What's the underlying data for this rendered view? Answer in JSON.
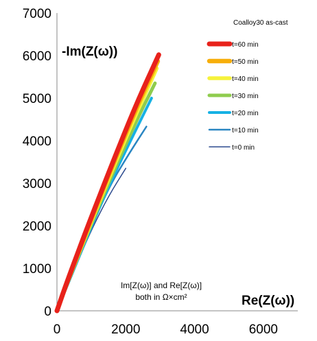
{
  "chart_data": {
    "type": "line",
    "title": "Coalloy30 as-cast",
    "xlabel": "Re(Z(ω))",
    "ylabel": "-Im(Z(ω))",
    "xlim": [
      0,
      7000
    ],
    "ylim": [
      0,
      7000
    ],
    "x_ticks": [
      "0",
      "2000",
      "4000",
      "6000"
    ],
    "y_ticks": [
      "0",
      "1000",
      "2000",
      "3000",
      "4000",
      "5000",
      "6000",
      "7000"
    ],
    "grid": false,
    "legend_position": "top-right",
    "annotation": [
      "Im[Z(ω)] and Re[Z(ω)]",
      "both in Ω×cm²"
    ],
    "series": [
      {
        "name": "t=60 min",
        "color": "#e8221b",
        "width": 7,
        "x": [
          0,
          300,
          900,
          1600,
          2300,
          2960
        ],
        "y": [
          0,
          700,
          2000,
          3450,
          4850,
          6020
        ]
      },
      {
        "name": "t=50 min",
        "color": "#f7ae0a",
        "width": 6.5,
        "x": [
          0,
          300,
          900,
          1600,
          2300,
          2930
        ],
        "y": [
          0,
          680,
          1950,
          3380,
          4750,
          5870
        ]
      },
      {
        "name": "t=40 min",
        "color": "#f6f23a",
        "width": 5.5,
        "x": [
          0,
          300,
          900,
          1600,
          2300,
          2900
        ],
        "y": [
          0,
          660,
          1900,
          3300,
          4620,
          5700
        ]
      },
      {
        "name": "t=30 min",
        "color": "#8fcc4e",
        "width": 5,
        "x": [
          0,
          300,
          900,
          1600,
          2300,
          2850
        ],
        "y": [
          0,
          640,
          1850,
          3200,
          4450,
          5350
        ]
      },
      {
        "name": "t=20 min",
        "color": "#16b1e4",
        "width": 4,
        "x": [
          0,
          300,
          900,
          1600,
          2200,
          2750
        ],
        "y": [
          0,
          600,
          1800,
          3100,
          4100,
          5000
        ]
      },
      {
        "name": "t=10 min",
        "color": "#2a86c2",
        "width": 2.5,
        "x": [
          0,
          300,
          900,
          1500,
          2100,
          2600
        ],
        "y": [
          0,
          560,
          1750,
          2900,
          3700,
          4330
        ]
      },
      {
        "name": "t=0 min",
        "color": "#2c4a8e",
        "width": 1.5,
        "x": [
          0,
          200,
          600,
          1000,
          1500,
          2000
        ],
        "y": [
          0,
          380,
          1150,
          1900,
          2700,
          3350
        ]
      }
    ]
  }
}
